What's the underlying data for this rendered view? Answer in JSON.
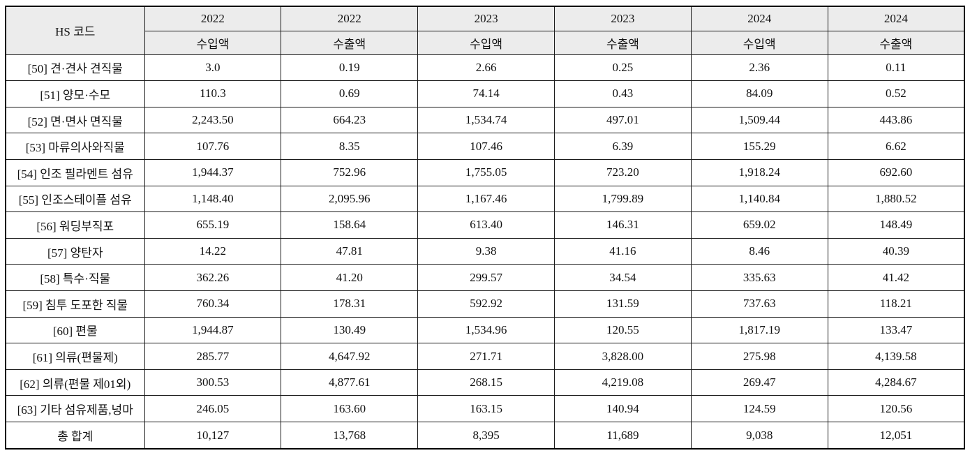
{
  "table": {
    "header": {
      "hs_code_label": "HS 코드",
      "year_columns": [
        {
          "year": "2022",
          "measure": "수입액"
        },
        {
          "year": "2022",
          "measure": "수출액"
        },
        {
          "year": "2023",
          "measure": "수입액"
        },
        {
          "year": "2023",
          "measure": "수출액"
        },
        {
          "year": "2024",
          "measure": "수입액"
        },
        {
          "year": "2024",
          "measure": "수출액"
        }
      ]
    },
    "rows": [
      {
        "label": "[50] 견·견사 견직물",
        "values": [
          "3.0",
          "0.19",
          "2.66",
          "0.25",
          "2.36",
          "0.11"
        ]
      },
      {
        "label": "[51] 양모·수모",
        "values": [
          "110.3",
          "0.69",
          "74.14",
          "0.43",
          "84.09",
          "0.52"
        ]
      },
      {
        "label": "[52] 면·면사 면직물",
        "values": [
          "2,243.50",
          "664.23",
          "1,534.74",
          "497.01",
          "1,509.44",
          "443.86"
        ]
      },
      {
        "label": "[53] 마류의사와직물",
        "values": [
          "107.76",
          "8.35",
          "107.46",
          "6.39",
          "155.29",
          "6.62"
        ]
      },
      {
        "label": "[54] 인조 필라멘트 섬유",
        "values": [
          "1,944.37",
          "752.96",
          "1,755.05",
          "723.20",
          "1,918.24",
          "692.60"
        ]
      },
      {
        "label": "[55] 인조스테이플 섬유",
        "values": [
          "1,148.40",
          "2,095.96",
          "1,167.46",
          "1,799.89",
          "1,140.84",
          "1,880.52"
        ]
      },
      {
        "label": "[56] 워딩부직포",
        "values": [
          "655.19",
          "158.64",
          "613.40",
          "146.31",
          "659.02",
          "148.49"
        ]
      },
      {
        "label": "[57] 양탄자",
        "values": [
          "14.22",
          "47.81",
          "9.38",
          "41.16",
          "8.46",
          "40.39"
        ]
      },
      {
        "label": "[58] 특수·직물",
        "values": [
          "362.26",
          "41.20",
          "299.57",
          "34.54",
          "335.63",
          "41.42"
        ]
      },
      {
        "label": "[59] 침투 도포한 직물",
        "values": [
          "760.34",
          "178.31",
          "592.92",
          "131.59",
          "737.63",
          "118.21"
        ]
      },
      {
        "label": "[60] 편물",
        "values": [
          "1,944.87",
          "130.49",
          "1,534.96",
          "120.55",
          "1,817.19",
          "133.47"
        ]
      },
      {
        "label": "[61] 의류(편물제)",
        "values": [
          "285.77",
          "4,647.92",
          "271.71",
          "3,828.00",
          "275.98",
          "4,139.58"
        ]
      },
      {
        "label": "[62] 의류(편물 제01외)",
        "values": [
          "300.53",
          "4,877.61",
          "268.15",
          "4,219.08",
          "269.47",
          "4,284.67"
        ]
      },
      {
        "label": "[63] 기타 섬유제품,넝마",
        "values": [
          "246.05",
          "163.60",
          "163.15",
          "140.94",
          "124.59",
          "120.56"
        ]
      }
    ],
    "total_row": {
      "label": "총 합계",
      "values": [
        "10,127",
        "13,768",
        "8,395",
        "11,689",
        "9,038",
        "12,051"
      ]
    }
  },
  "colors": {
    "header_bg": "#ececec",
    "border": "#000000",
    "text": "#111111",
    "dotted_divider": "#a9a9a9"
  }
}
